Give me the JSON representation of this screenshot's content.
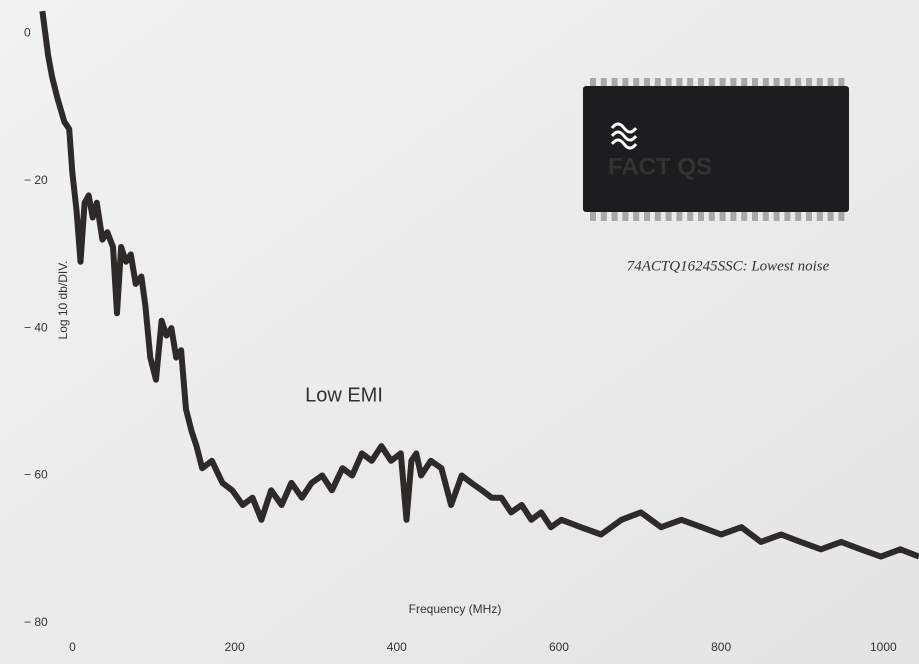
{
  "chart_data": {
    "type": "line",
    "x_label": "Frequency (MHz)",
    "y_label": "Log 10 db/DIV.",
    "annotations": [
      "Low EMI",
      "FACT QS",
      "74ACTQ16245SSC: Lowest noise"
    ],
    "x": [
      -37,
      -30,
      -25,
      -18,
      -10,
      -4,
      0,
      5,
      10,
      15,
      20,
      25,
      30,
      37,
      43,
      50,
      55,
      60,
      66,
      72,
      78,
      85,
      90,
      96,
      103,
      110,
      116,
      122,
      128,
      134,
      140,
      147,
      153,
      160,
      172,
      185,
      197,
      210,
      222,
      233,
      245,
      258,
      270,
      283,
      295,
      308,
      320,
      333,
      345,
      357,
      369,
      381,
      393,
      405,
      412,
      418,
      424,
      430,
      442,
      455,
      467,
      480,
      492,
      505,
      517,
      529,
      541,
      554,
      566,
      578,
      590,
      603,
      627,
      652,
      677,
      701,
      726,
      751,
      776,
      800,
      825,
      849,
      874,
      898,
      923,
      948,
      972,
      997,
      1021,
      1044
    ],
    "values": [
      3,
      -3,
      -6,
      -9,
      -12,
      -13,
      -19,
      -24,
      -31,
      -23,
      -22,
      -25,
      -23,
      -28,
      -27,
      -29,
      -38,
      -29,
      -31,
      -30,
      -34,
      -33,
      -37,
      -44,
      -47,
      -39,
      -41,
      -40,
      -44,
      -43,
      -51,
      -54,
      -56,
      -59,
      -58,
      -61,
      -62,
      -64,
      -63,
      -66,
      -62,
      -64,
      -61,
      -63,
      -61,
      -60,
      -62,
      -59,
      -60,
      -57,
      -58,
      -56,
      -58,
      -57,
      -66,
      -58,
      -57,
      -60,
      -58,
      -59,
      -64,
      -60,
      -61,
      -62,
      -63,
      -63,
      -65,
      -64,
      -66,
      -65,
      -67,
      -66,
      -67,
      -68,
      -66,
      -65,
      -67,
      -66,
      -67,
      -68,
      -67,
      -69,
      -68,
      -69,
      -70,
      -69,
      -70,
      -71,
      -70,
      -71
    ],
    "color": "#2e2a2a",
    "xlim": [
      -40,
      1044
    ],
    "ylim": [
      -80,
      4.5
    ],
    "xticks": [
      0,
      200,
      400,
      600,
      800,
      1000
    ],
    "yticks": [
      0,
      {
        "value": -20,
        "label": "− 20"
      },
      {
        "value": -40,
        "label": "− 40"
      },
      {
        "value": -60,
        "label": "− 60"
      },
      {
        "value": -80,
        "label": "− 80"
      }
    ],
    "grid": false
  }
}
